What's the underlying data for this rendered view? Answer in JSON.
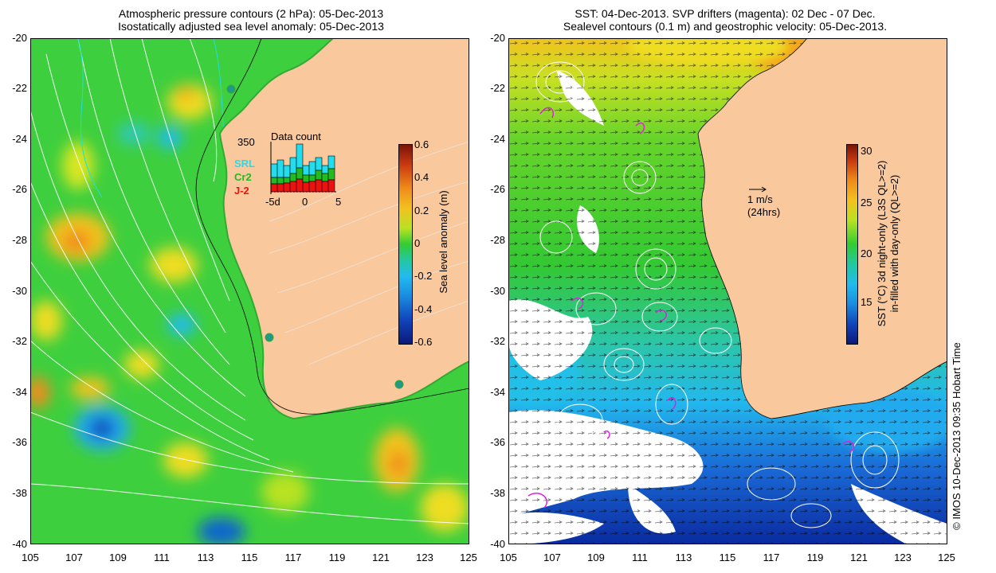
{
  "left_panel": {
    "title_line1": "Atmospheric pressure contours (2 hPa): 05-Dec-2013",
    "title_line2": "Isostatically adjusted sea level anomaly: 05-Dec-2013",
    "colorbar_label": "Sea level anomaly (m)",
    "colorbar_ticks": [
      "0.6",
      "0.4",
      "0.2",
      "0",
      "-0.2",
      "-0.4",
      "-0.6"
    ],
    "inset": {
      "title": "Data count",
      "max_label": "350",
      "series_labels": [
        "SRL",
        "Cr2",
        "J-2"
      ],
      "series_colors": [
        "#22ddee",
        "#22bb22",
        "#ee1111"
      ],
      "x_ticks": [
        "-5d",
        "0",
        "5"
      ]
    }
  },
  "right_panel": {
    "title_line1": "SST: 04-Dec-2013. SVP drifters (magenta): 02 Dec - 07 Dec.",
    "title_line2": "Sealevel contours (0.1 m) and geostrophic velocity: 05-Dec-2013.",
    "scale_vector_label": "1 m/s",
    "scale_vector_sub": "(24hrs)",
    "colorbar_label_line1": "SST (°C) 3d night-only (L3S QL>=2)",
    "colorbar_label_line2": "in-filled with day-only (QL>=2)",
    "colorbar_ticks": [
      "30",
      "25",
      "20",
      "15"
    ]
  },
  "y_ticks": [
    "-20",
    "-22",
    "-24",
    "-26",
    "-28",
    "-30",
    "-32",
    "-34",
    "-36",
    "-38",
    "-40"
  ],
  "x_ticks": [
    "105",
    "107",
    "109",
    "111",
    "113",
    "115",
    "117",
    "119",
    "121",
    "123",
    "125"
  ],
  "credit": "© IMOS 10-Dec-2013 09:35 Hobart Time",
  "colors": {
    "land": "#f9c89c",
    "ocean_green": "#33cc33",
    "warm": "#ffaa22",
    "cool": "#22bbee"
  }
}
